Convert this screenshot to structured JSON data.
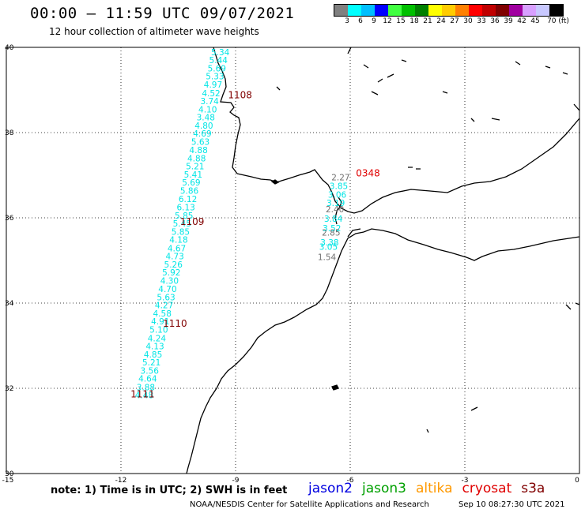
{
  "title": "00:00 – 11:59 UTC 09/07/2021",
  "subtitle": "12 hour collection of altimeter wave heights",
  "colorbar": {
    "colors": [
      "#808080",
      "#00ffff",
      "#00bfff",
      "#0000ff",
      "#40ff40",
      "#00c000",
      "#008000",
      "#ffff00",
      "#ffcc00",
      "#ff8000",
      "#ff0000",
      "#c00000",
      "#800000",
      "#a000a0",
      "#d8a0ff",
      "#c8c8ff",
      "#000000"
    ],
    "labels": [
      "3",
      "6",
      "9",
      "12",
      "15",
      "18",
      "21",
      "24",
      "27",
      "30",
      "33",
      "36",
      "39",
      "42",
      "45",
      "70 (ft)"
    ]
  },
  "axes": {
    "x_ticks": [
      "-15",
      "-12",
      "-9",
      "-6",
      "-3",
      "0"
    ],
    "y_ticks": [
      "30",
      "32",
      "34",
      "36",
      "38",
      "40"
    ],
    "xlim": [
      -15,
      0
    ],
    "ylim": [
      30,
      40
    ]
  },
  "tracks": [
    {
      "name": "track_1108_1109_1110_1111",
      "color": "#00e5e5",
      "points": [
        {
          "lon": -9.4,
          "lat": 39.89,
          "v": "5.34"
        },
        {
          "lon": -9.45,
          "lat": 39.7,
          "v": "5.44"
        },
        {
          "lon": -9.49,
          "lat": 39.51,
          "v": "5.69"
        },
        {
          "lon": -9.54,
          "lat": 39.32,
          "v": "5.33"
        },
        {
          "lon": -9.59,
          "lat": 39.13,
          "v": "4.97"
        },
        {
          "lon": -9.64,
          "lat": 38.93,
          "v": "4.52"
        },
        {
          "lon": -9.68,
          "lat": 38.74,
          "v": "3.74"
        },
        {
          "lon": -9.73,
          "lat": 38.55,
          "v": "4.10"
        },
        {
          "lon": -9.78,
          "lat": 38.36,
          "v": "3.48"
        },
        {
          "lon": -9.83,
          "lat": 38.17,
          "v": "4.80"
        },
        {
          "lon": -9.87,
          "lat": 37.98,
          "v": "4.69"
        },
        {
          "lon": -9.92,
          "lat": 37.79,
          "v": "5.63"
        },
        {
          "lon": -9.97,
          "lat": 37.59,
          "v": "4.88"
        },
        {
          "lon": -10.02,
          "lat": 37.4,
          "v": "4.88"
        },
        {
          "lon": -10.06,
          "lat": 37.21,
          "v": "5.21"
        },
        {
          "lon": -10.11,
          "lat": 37.02,
          "v": "5.41"
        },
        {
          "lon": -10.16,
          "lat": 36.83,
          "v": "5.69"
        },
        {
          "lon": -10.21,
          "lat": 36.64,
          "v": "5.86"
        },
        {
          "lon": -10.25,
          "lat": 36.44,
          "v": "6.12"
        },
        {
          "lon": -10.3,
          "lat": 36.25,
          "v": "6.13"
        },
        {
          "lon": -10.35,
          "lat": 36.06,
          "v": "5.85"
        },
        {
          "lon": -10.4,
          "lat": 35.87,
          "v": "5.45"
        },
        {
          "lon": -10.44,
          "lat": 35.68,
          "v": "5.85"
        },
        {
          "lon": -10.49,
          "lat": 35.49,
          "v": "4.18"
        },
        {
          "lon": -10.54,
          "lat": 35.29,
          "v": "4.67"
        },
        {
          "lon": -10.59,
          "lat": 35.1,
          "v": "4.73"
        },
        {
          "lon": -10.63,
          "lat": 34.91,
          "v": "5.26"
        },
        {
          "lon": -10.68,
          "lat": 34.72,
          "v": "5.92"
        },
        {
          "lon": -10.73,
          "lat": 34.53,
          "v": "4.30"
        },
        {
          "lon": -10.78,
          "lat": 34.33,
          "v": "4.70"
        },
        {
          "lon": -10.82,
          "lat": 34.14,
          "v": "5.63"
        },
        {
          "lon": -10.87,
          "lat": 33.95,
          "v": "4.27"
        },
        {
          "lon": -10.92,
          "lat": 33.76,
          "v": "4.58"
        },
        {
          "lon": -10.97,
          "lat": 33.57,
          "v": "4.91"
        },
        {
          "lon": -11.01,
          "lat": 33.38,
          "v": "5.10"
        },
        {
          "lon": -11.06,
          "lat": 33.18,
          "v": "4.24"
        },
        {
          "lon": -11.11,
          "lat": 32.99,
          "v": "4.13"
        },
        {
          "lon": -11.16,
          "lat": 32.8,
          "v": "4.85"
        },
        {
          "lon": -11.2,
          "lat": 32.61,
          "v": "5.21"
        },
        {
          "lon": -11.25,
          "lat": 32.42,
          "v": "3.56"
        },
        {
          "lon": -11.3,
          "lat": 32.23,
          "v": "4.64"
        },
        {
          "lon": -11.35,
          "lat": 32.03,
          "v": "3.88"
        },
        {
          "lon": -11.39,
          "lat": 31.84,
          "v": "4.48"
        }
      ]
    },
    {
      "name": "track_0348",
      "color": "#00e5e5",
      "points": [
        {
          "lon": -6.25,
          "lat": 36.95,
          "v": "2.27",
          "c": "#707070"
        },
        {
          "lon": -6.3,
          "lat": 36.75,
          "v": "3.85",
          "c": "#00e5e5"
        },
        {
          "lon": -6.34,
          "lat": 36.55,
          "v": "3.06",
          "c": "#00e5e5"
        },
        {
          "lon": -6.38,
          "lat": 36.35,
          "v": "3.19",
          "c": "#00e5e5"
        },
        {
          "lon": -6.4,
          "lat": 36.2,
          "v": "2.40",
          "c": "#707070"
        },
        {
          "lon": -6.44,
          "lat": 35.98,
          "v": "3.84",
          "c": "#00e5e5"
        },
        {
          "lon": -6.48,
          "lat": 35.76,
          "v": "3.52",
          "c": "#00e5e5"
        },
        {
          "lon": -6.5,
          "lat": 35.66,
          "v": "2.85",
          "c": "#707070"
        },
        {
          "lon": -6.54,
          "lat": 35.43,
          "v": "3.38",
          "c": "#00e5e5"
        },
        {
          "lon": -6.57,
          "lat": 35.32,
          "v": "3.05",
          "c": "#00e5e5"
        },
        {
          "lon": -6.61,
          "lat": 35.08,
          "v": "1.54",
          "c": "#707070"
        }
      ]
    }
  ],
  "pass_labels": [
    {
      "text": "1108",
      "lon": -9.2,
      "lat": 38.88,
      "color": "#800000"
    },
    {
      "text": "1109",
      "lon": -10.45,
      "lat": 35.91,
      "color": "#800000"
    },
    {
      "text": "1110",
      "lon": -10.9,
      "lat": 33.52,
      "color": "#800000"
    },
    {
      "text": "1111",
      "lon": -11.75,
      "lat": 31.86,
      "color": "#800000"
    },
    {
      "text": "0348",
      "lon": -5.85,
      "lat": 37.05,
      "color": "#e00000"
    }
  ],
  "note": "note:  1) Time is in UTC;  2) SWH is in feet",
  "satellites": [
    {
      "name": "jason2",
      "color": "#0000e0"
    },
    {
      "name": "jason3",
      "color": "#00a000"
    },
    {
      "name": "altika",
      "color": "#ff9900"
    },
    {
      "name": "cryosat",
      "color": "#e00000"
    },
    {
      "name": "s3a",
      "color": "#800000"
    }
  ],
  "footer": {
    "credit": "NOAA/NESDIS Center for Satellite Applications and Research",
    "timestamp": "Sep 10 08:27:30 UTC 2021"
  }
}
